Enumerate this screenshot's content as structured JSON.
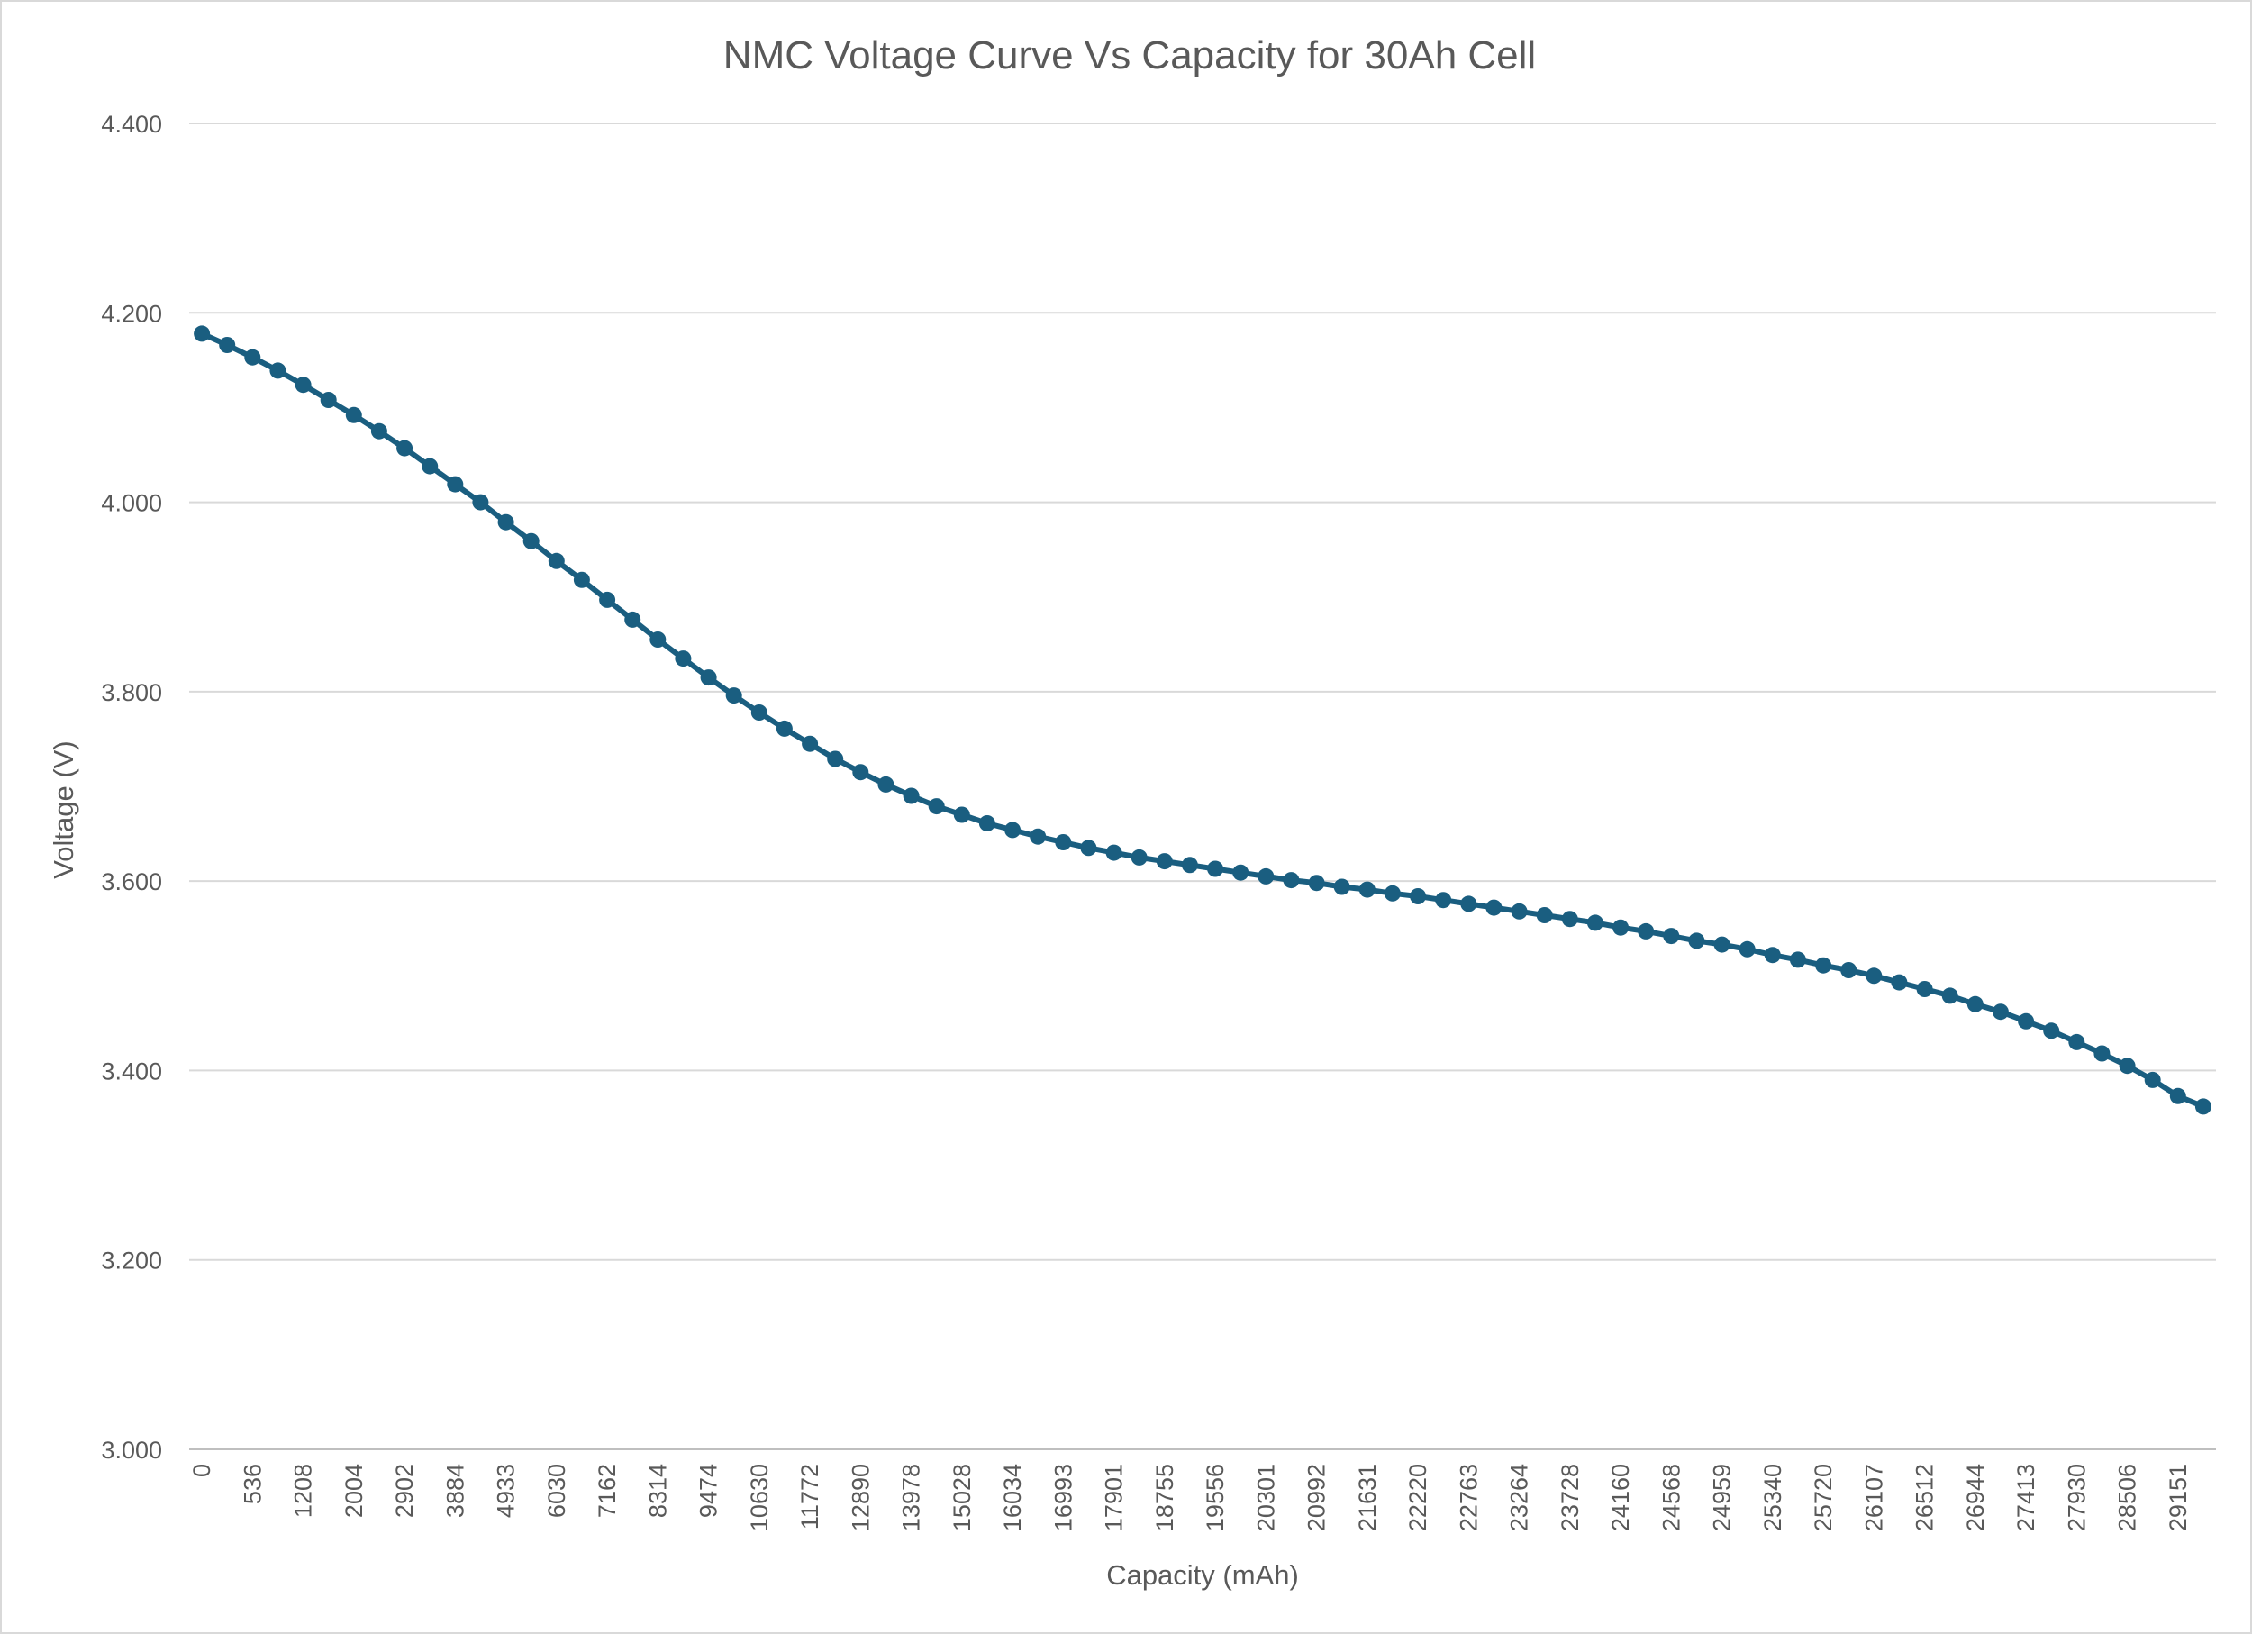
{
  "chart_data": {
    "type": "line",
    "title": "NMC Voltage Curve Vs Capacity for 30Ah Cell",
    "xlabel": "Capacity (mAh)",
    "ylabel": "Voltage (V)",
    "ylim": [
      3.0,
      4.4
    ],
    "ytick_step": 0.2,
    "ytick_labels": [
      "3.000",
      "3.200",
      "3.400",
      "3.600",
      "3.800",
      "4.000",
      "4.200",
      "4.400"
    ],
    "grid": "horizontal",
    "legend": "none",
    "x_tick_labels": [
      "0",
      "536",
      "1208",
      "2004",
      "2902",
      "3884",
      "4933",
      "6030",
      "7162",
      "8314",
      "9474",
      "10630",
      "11772",
      "12890",
      "13978",
      "15028",
      "16034",
      "16993",
      "17901",
      "18755",
      "19556",
      "20301",
      "20992",
      "21631",
      "22220",
      "22763",
      "23264",
      "23728",
      "24160",
      "24568",
      "24959",
      "25340",
      "25720",
      "26107",
      "26512",
      "26944",
      "27413",
      "27930",
      "28506",
      "29151"
    ],
    "series": [
      {
        "color": "#1a5e80",
        "values": [
          4.178,
          4.166,
          4.153,
          4.139,
          4.124,
          4.108,
          4.092,
          4.075,
          4.057,
          4.038,
          4.019,
          4.0,
          3.979,
          3.959,
          3.938,
          3.918,
          3.897,
          3.876,
          3.855,
          3.835,
          3.815,
          3.796,
          3.778,
          3.761,
          3.745,
          3.729,
          3.715,
          3.702,
          3.69,
          3.679,
          3.67,
          3.661,
          3.654,
          3.647,
          3.641,
          3.635,
          3.63,
          3.625,
          3.621,
          3.617,
          3.613,
          3.609,
          3.605,
          3.601,
          3.598,
          3.594,
          3.591,
          3.587,
          3.584,
          3.58,
          3.576,
          3.572,
          3.568,
          3.564,
          3.56,
          3.556,
          3.551,
          3.547,
          3.542,
          3.537,
          3.533,
          3.528,
          3.522,
          3.517,
          3.511,
          3.506,
          3.5,
          3.493,
          3.486,
          3.479,
          3.47,
          3.462,
          3.452,
          3.442,
          3.43,
          3.418,
          3.405,
          3.39,
          3.373,
          3.362
        ]
      }
    ]
  }
}
